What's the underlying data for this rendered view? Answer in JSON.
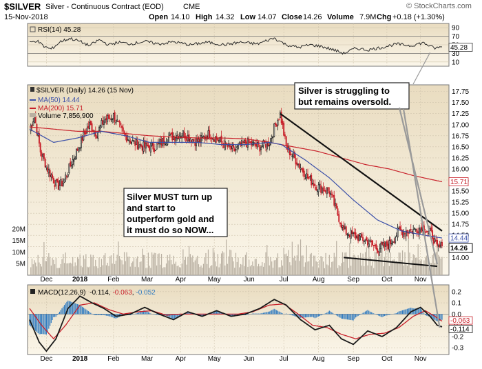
{
  "header": {
    "symbol": "$SILVER",
    "name": "Silver - Continuous Contract (EOD)",
    "exchange": "CME",
    "date": "15-Nov-2018",
    "open_label": "Open",
    "open": "14.10",
    "high_label": "High",
    "high": "14.32",
    "low_label": "Low",
    "low": "14.07",
    "close_label": "Close",
    "close": "14.26",
    "volume_label": "Volume",
    "volume": "7.9M",
    "chg_label": "Chg",
    "chg": "+0.18 (+1.30%)",
    "watermark": "© StockCharts.com"
  },
  "colors": {
    "panel_bg_top": "#e9dcc0",
    "panel_bg_bottom": "#fbf6ea",
    "candle_up": "#1a1a1a",
    "candle_down": "#c8202a",
    "ma50": "#3a4fa8",
    "ma200": "#c8202a",
    "volume": "#b9b0a2",
    "rsi_line": "#2a2a2a",
    "macd_hist": "#2f7ac0",
    "macd_signal": "#c8202a",
    "macd_line": "#1a1a1a",
    "annotation_line": "#9a9a9a"
  },
  "legends": {
    "rsi": "RSI(14) 45.28",
    "price": "$SILVER (Daily) 14.26 (15 Nov)",
    "ma50": "MA(50) 14.44",
    "ma200": "MA(200) 15.71",
    "volume": "Volume 7,856,900",
    "macd_name": "MACD(12,26,9)",
    "macd_v1": "-0.114",
    "macd_v2": "-0.063",
    "macd_v3": "-0.052"
  },
  "annotations": {
    "top_right_line1": "Silver is struggling to",
    "top_right_line2": "but remains oversold.",
    "middle_line1": "Silver MUST turn up",
    "middle_line2": "and start to",
    "middle_line3": "outperform gold and",
    "middle_line4": "it must do so NOW..."
  },
  "badges": {
    "rsi_value": "45.28",
    "ma200_value": "15.71",
    "ma50_value": "14.44",
    "price_value": "14.26",
    "macd_a": "-0.063",
    "macd_b": "-0.114"
  },
  "chart_data": {
    "type": "candlestick",
    "x_labels": [
      "Dec",
      "2018",
      "Feb",
      "Mar",
      "Apr",
      "May",
      "Jun",
      "Jul",
      "Aug",
      "Sep",
      "Oct",
      "Nov"
    ],
    "price": {
      "ylim": [
        13.6,
        17.9
      ],
      "ticks": [
        "17.75",
        "17.50",
        "17.25",
        "17.00",
        "16.75",
        "16.50",
        "16.25",
        "16.00",
        "15.75",
        "15.50",
        "15.25",
        "15.00",
        "14.75",
        "14.50",
        "14.25",
        "14.00"
      ],
      "anchors": [
        [
          0,
          16.9
        ],
        [
          4,
          17.2
        ],
        [
          9,
          16.4
        ],
        [
          15,
          16.0
        ],
        [
          23,
          15.6
        ],
        [
          28,
          15.7
        ],
        [
          36,
          16.2
        ],
        [
          44,
          16.7
        ],
        [
          50,
          17.0
        ],
        [
          56,
          16.8
        ],
        [
          62,
          17.1
        ],
        [
          70,
          17.2
        ],
        [
          78,
          16.8
        ],
        [
          86,
          16.6
        ],
        [
          95,
          16.5
        ],
        [
          105,
          16.5
        ],
        [
          115,
          16.7
        ],
        [
          128,
          16.8
        ],
        [
          140,
          16.6
        ],
        [
          150,
          16.8
        ],
        [
          160,
          16.6
        ],
        [
          170,
          16.4
        ],
        [
          180,
          16.6
        ],
        [
          192,
          16.5
        ],
        [
          200,
          16.6
        ],
        [
          205,
          17.0
        ],
        [
          209,
          17.25
        ],
        [
          214,
          16.5
        ],
        [
          222,
          16.2
        ],
        [
          232,
          15.8
        ],
        [
          240,
          15.6
        ],
        [
          250,
          15.5
        ],
        [
          258,
          14.9
        ],
        [
          262,
          14.6
        ],
        [
          270,
          14.5
        ],
        [
          280,
          14.4
        ],
        [
          290,
          14.2
        ],
        [
          300,
          14.3
        ],
        [
          308,
          14.6
        ],
        [
          318,
          14.6
        ],
        [
          328,
          14.7
        ],
        [
          336,
          14.5
        ],
        [
          340,
          14.2
        ],
        [
          344,
          14.26
        ]
      ],
      "ma50": [
        [
          0,
          16.9
        ],
        [
          20,
          16.6
        ],
        [
          40,
          16.7
        ],
        [
          60,
          16.85
        ],
        [
          80,
          16.75
        ],
        [
          100,
          16.6
        ],
        [
          120,
          16.6
        ],
        [
          140,
          16.6
        ],
        [
          160,
          16.55
        ],
        [
          180,
          16.55
        ],
        [
          200,
          16.6
        ],
        [
          210,
          16.55
        ],
        [
          230,
          16.2
        ],
        [
          250,
          15.8
        ],
        [
          270,
          15.3
        ],
        [
          290,
          14.85
        ],
        [
          310,
          14.6
        ],
        [
          330,
          14.5
        ],
        [
          344,
          14.44
        ]
      ],
      "ma200": [
        [
          0,
          16.95
        ],
        [
          20,
          16.9
        ],
        [
          40,
          16.85
        ],
        [
          60,
          16.85
        ],
        [
          80,
          16.8
        ],
        [
          100,
          16.75
        ],
        [
          120,
          16.72
        ],
        [
          140,
          16.7
        ],
        [
          160,
          16.7
        ],
        [
          180,
          16.68
        ],
        [
          200,
          16.6
        ],
        [
          220,
          16.5
        ],
        [
          240,
          16.4
        ],
        [
          260,
          16.25
        ],
        [
          280,
          16.1
        ],
        [
          300,
          16.0
        ],
        [
          320,
          15.85
        ],
        [
          344,
          15.71
        ]
      ],
      "resistance": [
        [
          209,
          17.25
        ],
        [
          344,
          14.6
        ]
      ],
      "support": [
        [
          262,
          14.0
        ],
        [
          340,
          13.8
        ]
      ]
    },
    "volume": {
      "ylim": [
        0,
        28
      ],
      "ticks": [
        "20M",
        "15M",
        "10M",
        "5M"
      ],
      "last": 7.9
    },
    "rsi": {
      "ylim": [
        0,
        100
      ],
      "ticks": [
        "90",
        "70",
        "50",
        "30",
        "10"
      ],
      "anchors": [
        [
          0,
          55
        ],
        [
          6,
          60
        ],
        [
          12,
          46
        ],
        [
          18,
          40
        ],
        [
          26,
          58
        ],
        [
          34,
          65
        ],
        [
          42,
          58
        ],
        [
          50,
          48
        ],
        [
          58,
          62
        ],
        [
          66,
          50
        ],
        [
          74,
          56
        ],
        [
          84,
          52
        ],
        [
          96,
          58
        ],
        [
          108,
          52
        ],
        [
          120,
          57
        ],
        [
          134,
          50
        ],
        [
          148,
          56
        ],
        [
          162,
          50
        ],
        [
          176,
          56
        ],
        [
          190,
          52
        ],
        [
          204,
          66
        ],
        [
          214,
          50
        ],
        [
          224,
          44
        ],
        [
          234,
          50
        ],
        [
          244,
          46
        ],
        [
          254,
          38
        ],
        [
          262,
          30
        ],
        [
          272,
          42
        ],
        [
          282,
          38
        ],
        [
          294,
          44
        ],
        [
          306,
          52
        ],
        [
          318,
          48
        ],
        [
          328,
          55
        ],
        [
          338,
          42
        ],
        [
          344,
          45.28
        ]
      ]
    },
    "macd": {
      "ylim": [
        -0.36,
        0.26
      ],
      "ticks": [
        "0.2",
        "0.1",
        "0.0",
        "-0.1",
        "-0.2",
        "-0.3"
      ],
      "line": [
        [
          0,
          -0.05
        ],
        [
          8,
          -0.25
        ],
        [
          14,
          -0.33
        ],
        [
          22,
          -0.22
        ],
        [
          32,
          0.05
        ],
        [
          42,
          0.16
        ],
        [
          52,
          0.1
        ],
        [
          62,
          0.05
        ],
        [
          72,
          -0.02
        ],
        [
          84,
          0.0
        ],
        [
          96,
          0.06
        ],
        [
          108,
          0.0
        ],
        [
          120,
          -0.05
        ],
        [
          132,
          0.02
        ],
        [
          144,
          -0.02
        ],
        [
          156,
          0.03
        ],
        [
          168,
          -0.02
        ],
        [
          180,
          0.0
        ],
        [
          192,
          0.05
        ],
        [
          204,
          0.13
        ],
        [
          214,
          0.08
        ],
        [
          226,
          -0.05
        ],
        [
          238,
          -0.14
        ],
        [
          250,
          -0.1
        ],
        [
          260,
          -0.22
        ],
        [
          270,
          -0.27
        ],
        [
          282,
          -0.15
        ],
        [
          294,
          -0.2
        ],
        [
          306,
          -0.12
        ],
        [
          318,
          0.02
        ],
        [
          326,
          0.06
        ],
        [
          334,
          -0.02
        ],
        [
          340,
          -0.1
        ],
        [
          344,
          -0.114
        ]
      ],
      "signal": [
        [
          0,
          0.05
        ],
        [
          10,
          -0.1
        ],
        [
          20,
          -0.22
        ],
        [
          30,
          -0.1
        ],
        [
          42,
          0.08
        ],
        [
          54,
          0.1
        ],
        [
          66,
          0.04
        ],
        [
          78,
          0.0
        ],
        [
          90,
          0.02
        ],
        [
          102,
          0.03
        ],
        [
          114,
          -0.01
        ],
        [
          126,
          0.0
        ],
        [
          138,
          0.0
        ],
        [
          150,
          0.0
        ],
        [
          162,
          0.0
        ],
        [
          174,
          0.0
        ],
        [
          186,
          0.02
        ],
        [
          200,
          0.08
        ],
        [
          212,
          0.09
        ],
        [
          224,
          0.0
        ],
        [
          236,
          -0.1
        ],
        [
          248,
          -0.12
        ],
        [
          260,
          -0.18
        ],
        [
          272,
          -0.22
        ],
        [
          284,
          -0.18
        ],
        [
          296,
          -0.17
        ],
        [
          308,
          -0.12
        ],
        [
          320,
          -0.02
        ],
        [
          330,
          0.03
        ],
        [
          338,
          -0.02
        ],
        [
          344,
          -0.063
        ]
      ]
    }
  }
}
